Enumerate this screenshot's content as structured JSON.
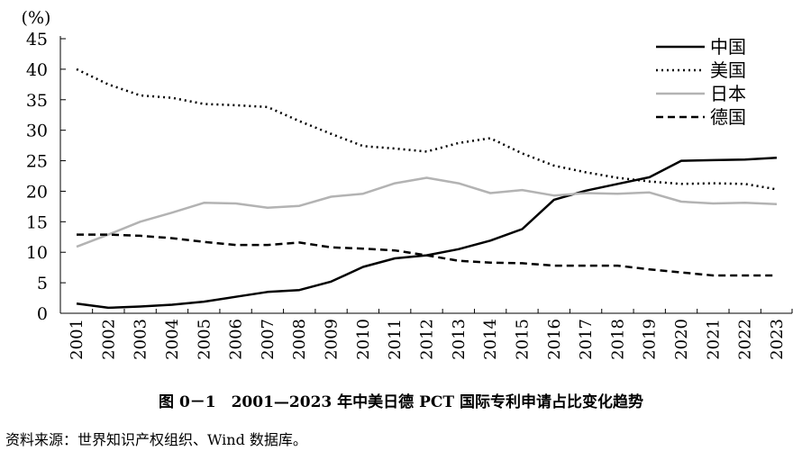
{
  "chart_data": {
    "type": "line",
    "ylabel": "(%)",
    "ylim": [
      0,
      45
    ],
    "yticks": [
      0,
      5,
      10,
      15,
      20,
      25,
      30,
      35,
      40,
      45
    ],
    "categories": [
      "2001",
      "2002",
      "2003",
      "2004",
      "2005",
      "2006",
      "2007",
      "2008",
      "2009",
      "2010",
      "2011",
      "2012",
      "2013",
      "2014",
      "2015",
      "2016",
      "2017",
      "2018",
      "2019",
      "2020",
      "2021",
      "2022",
      "2023"
    ],
    "legend_position": "top-right",
    "grid": false,
    "series": [
      {
        "name": "中国",
        "style": "solid",
        "color": "#000000",
        "values": [
          1.6,
          0.9,
          1.1,
          1.4,
          1.9,
          2.7,
          3.5,
          3.8,
          5.2,
          7.6,
          9.0,
          9.5,
          10.5,
          11.9,
          13.8,
          18.6,
          20.1,
          21.2,
          22.3,
          25.0,
          25.1,
          25.2,
          25.5
        ]
      },
      {
        "name": "美国",
        "style": "dotted",
        "color": "#000000",
        "values": [
          40.0,
          37.5,
          35.7,
          35.3,
          34.3,
          34.1,
          33.8,
          31.5,
          29.4,
          27.4,
          27.0,
          26.5,
          27.9,
          28.7,
          26.2,
          24.2,
          23.1,
          22.2,
          21.6,
          21.2,
          21.3,
          21.2,
          20.3
        ]
      },
      {
        "name": "日本",
        "style": "solid",
        "color": "#b3b3b3",
        "values": [
          10.9,
          12.9,
          15.0,
          16.5,
          18.1,
          18.0,
          17.3,
          17.6,
          19.1,
          19.6,
          21.3,
          22.2,
          21.3,
          19.7,
          20.2,
          19.3,
          19.7,
          19.6,
          19.8,
          18.3,
          18.0,
          18.1,
          17.9
        ]
      },
      {
        "name": "德国",
        "style": "dashed",
        "color": "#000000",
        "values": [
          12.9,
          12.9,
          12.7,
          12.3,
          11.7,
          11.2,
          11.2,
          11.6,
          10.8,
          10.6,
          10.3,
          9.5,
          8.6,
          8.3,
          8.2,
          7.8,
          7.8,
          7.8,
          7.2,
          6.7,
          6.2,
          6.2,
          6.2
        ]
      }
    ]
  },
  "caption": "图 0－1　2001—2023 年中美日德 PCT 国际专利申请占比变化趋势",
  "source": "资料来源：世界知识产权组织、Wind 数据库。"
}
